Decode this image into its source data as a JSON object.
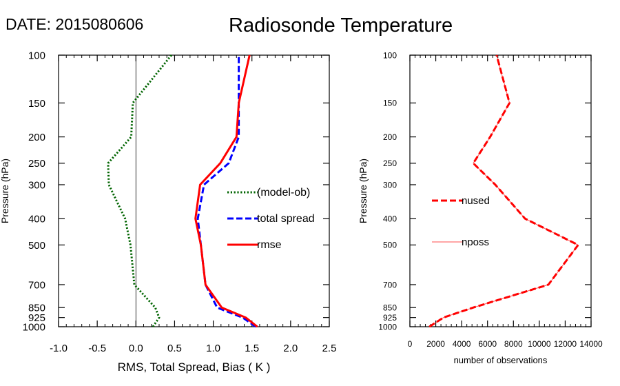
{
  "header": {
    "date_label": "DATE: 2015080606",
    "title": "Radiosonde Temperature"
  },
  "chart_data": [
    {
      "type": "line",
      "xlabel": "RMS, Total Spread, Bias ( K )",
      "ylabel": "Pressure (hPa)",
      "xlim": [
        -1.0,
        2.5
      ],
      "ylim": [
        1000,
        100
      ],
      "y_scale": "log",
      "x_ticks": [
        "-1.0",
        "-0.5",
        "0.0",
        "0.5",
        "1.0",
        "1.5",
        "2.0",
        "2.5"
      ],
      "y_ticks": [
        "100",
        "150",
        "200",
        "250",
        "300",
        "400",
        "500",
        "700",
        "850",
        "925",
        "1000"
      ],
      "pressure": [
        1000,
        925,
        850,
        700,
        500,
        400,
        300,
        250,
        200,
        150,
        100
      ],
      "reference_line_x": 0.0,
      "legend_position": "center-right",
      "series": [
        {
          "name": "(model-ob)",
          "color": "#006400",
          "style": "dotted",
          "values": [
            0.22,
            0.3,
            0.25,
            -0.02,
            -0.07,
            -0.14,
            -0.35,
            -0.36,
            -0.06,
            -0.04,
            0.46
          ]
        },
        {
          "name": "total spread",
          "color": "#0000ff",
          "style": "dashed",
          "values": [
            1.55,
            1.38,
            1.05,
            0.9,
            0.84,
            0.8,
            0.88,
            1.2,
            1.33,
            1.33,
            1.33
          ]
        },
        {
          "name": "rmse",
          "color": "#ff0000",
          "style": "solid",
          "values": [
            1.57,
            1.42,
            1.11,
            0.9,
            0.84,
            0.77,
            0.83,
            1.09,
            1.3,
            1.33,
            1.47
          ]
        }
      ]
    },
    {
      "type": "line",
      "xlabel": "number of observations",
      "ylabel": "Pressure (hPa)",
      "xlim": [
        0,
        14000
      ],
      "ylim": [
        1000,
        100
      ],
      "y_scale": "log",
      "x_ticks": [
        "0",
        "2000",
        "4000",
        "6000",
        "8000",
        "10000",
        "12000",
        "14000"
      ],
      "y_ticks": [
        "100",
        "150",
        "200",
        "250",
        "300",
        "400",
        "500",
        "700",
        "850",
        "925",
        "1000"
      ],
      "pressure": [
        1000,
        925,
        850,
        700,
        500,
        400,
        300,
        250,
        200,
        150,
        100
      ],
      "legend_position": "center-left",
      "series": [
        {
          "name": "nused",
          "color": "#ff0000",
          "style": "dashed",
          "values": [
            1500,
            2600,
            4900,
            10700,
            13000,
            8900,
            6600,
            4900,
            6200,
            7700,
            6700
          ]
        },
        {
          "name": "nposs",
          "color": "#ff0000",
          "style": "thin-solid",
          "values": [
            1500,
            2600,
            4900,
            10700,
            13000,
            8900,
            6600,
            4900,
            6200,
            7700,
            6700
          ]
        }
      ]
    }
  ]
}
